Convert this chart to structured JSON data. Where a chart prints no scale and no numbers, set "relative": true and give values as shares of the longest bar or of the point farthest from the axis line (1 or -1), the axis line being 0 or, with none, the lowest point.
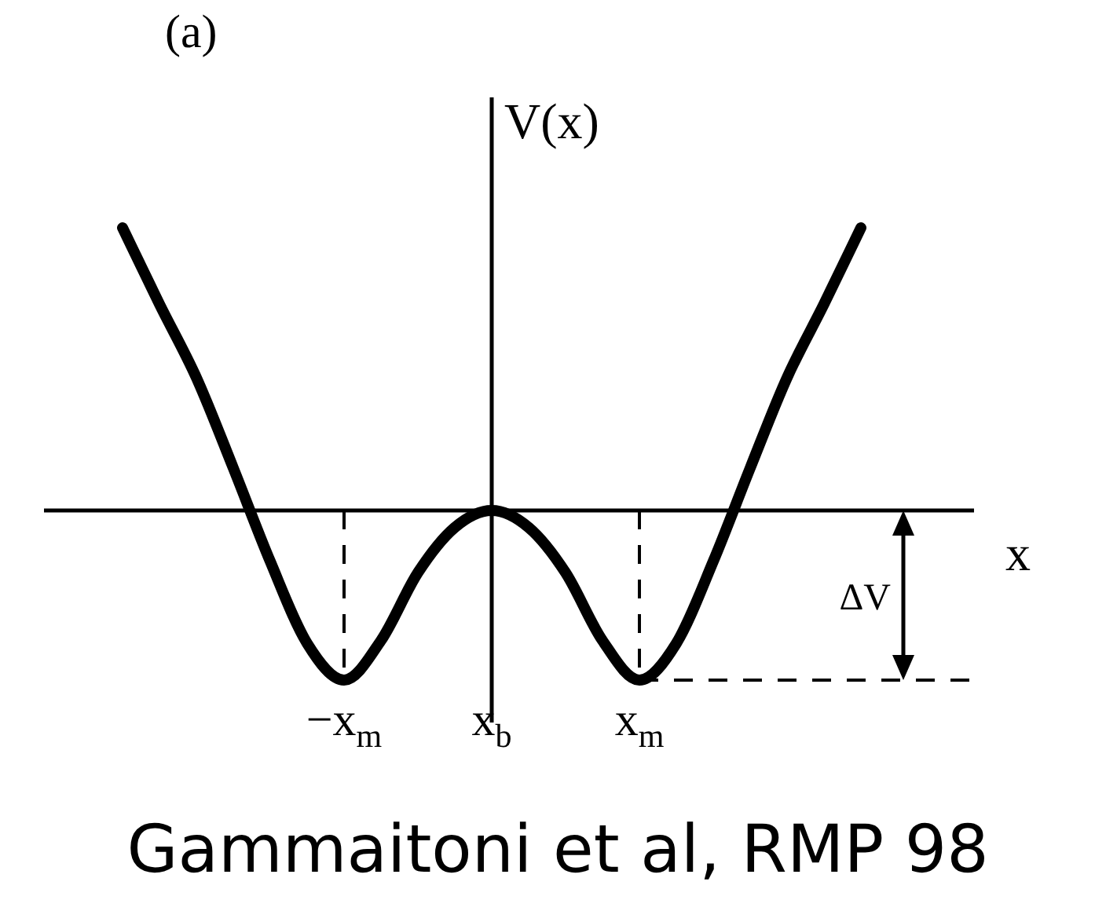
{
  "chart_data": {
    "type": "line",
    "relative": true,
    "title": "(a)",
    "ylabel": "V(x)",
    "xlabel": "x",
    "categories": [
      null,
      null,
      null,
      null,
      null,
      null,
      "−x$_{m}$",
      null,
      null,
      null,
      "x$_{b}$",
      null,
      null,
      null,
      "x$_{m}$",
      null,
      null,
      null,
      null,
      null,
      null
    ],
    "series": [
      {
        "color": "#000000",
        "values": [
          1,
          0.73,
          0.47,
          0.15,
          -0.18,
          -0.47,
          -0.6,
          -0.46,
          -0.22,
          -0.06,
          0,
          -0.06,
          -0.22,
          -0.46,
          -0.6,
          -0.47,
          -0.18,
          0.15,
          0.47,
          0.73,
          1
        ]
      }
    ],
    "marker": "none",
    "line_style": "solid",
    "ref_lines": [
      {
        "axis": "y",
        "value": -0.6,
        "label": "ΔV",
        "line_style": "dashed"
      },
      {
        "axis": "x",
        "value": "−x$_{m}$",
        "line_style": "dashed"
      },
      {
        "axis": "x",
        "value": "x$_{m}$",
        "line_style": "dashed"
      }
    ],
    "annotations": [
      "Gammaitoni et al, RMP 98"
    ]
  }
}
